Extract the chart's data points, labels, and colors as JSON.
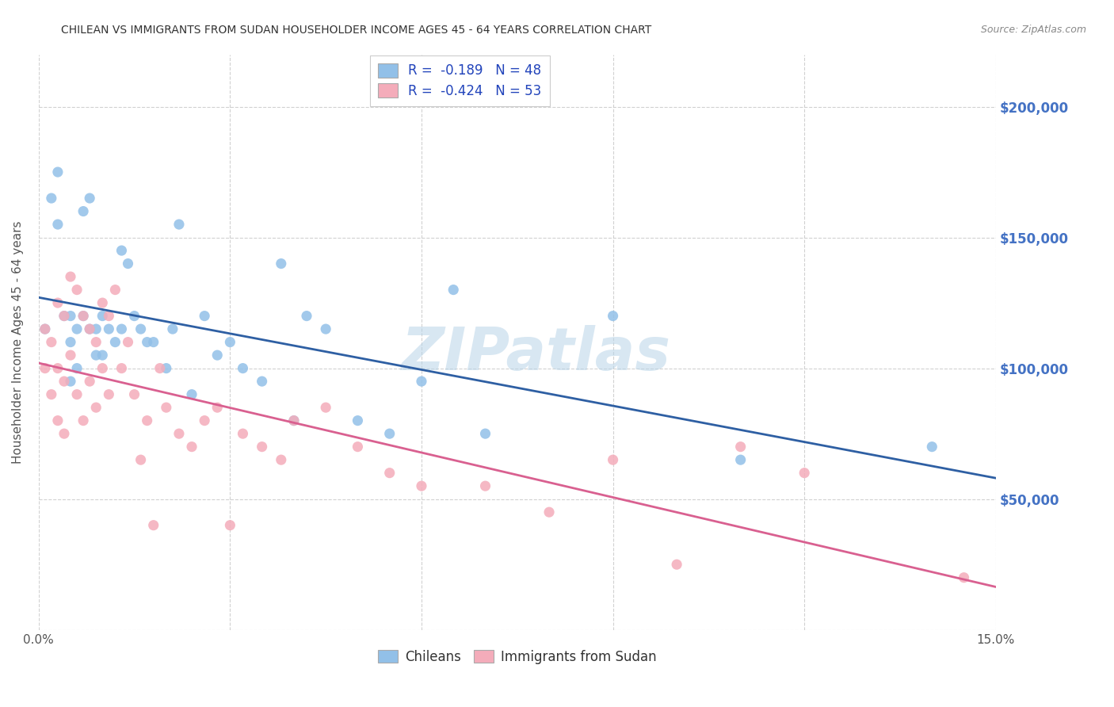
{
  "title": "CHILEAN VS IMMIGRANTS FROM SUDAN HOUSEHOLDER INCOME AGES 45 - 64 YEARS CORRELATION CHART",
  "source": "Source: ZipAtlas.com",
  "ylabel": "Householder Income Ages 45 - 64 years",
  "xmin": 0.0,
  "xmax": 0.15,
  "ymin": 0,
  "ymax": 220000,
  "yticks": [
    0,
    50000,
    100000,
    150000,
    200000
  ],
  "ytick_labels": [
    "",
    "$50,000",
    "$100,000",
    "$150,000",
    "$200,000"
  ],
  "xticks": [
    0.0,
    0.03,
    0.06,
    0.09,
    0.12,
    0.15
  ],
  "xtick_labels": [
    "0.0%",
    "",
    "",
    "",
    "",
    "15.0%"
  ],
  "legend_label1": "Chileans",
  "legend_label2": "Immigrants from Sudan",
  "R1": -0.189,
  "N1": 48,
  "R2": -0.424,
  "N2": 53,
  "color_blue": "#92C0E8",
  "color_pink": "#F4ACBA",
  "line_color_blue": "#2E5FA3",
  "line_color_pink": "#D96090",
  "watermark": "ZIPatlas",
  "blue_points_x": [
    0.001,
    0.002,
    0.003,
    0.003,
    0.004,
    0.005,
    0.005,
    0.005,
    0.006,
    0.006,
    0.007,
    0.007,
    0.008,
    0.008,
    0.009,
    0.009,
    0.01,
    0.01,
    0.011,
    0.012,
    0.013,
    0.013,
    0.014,
    0.015,
    0.016,
    0.017,
    0.018,
    0.02,
    0.021,
    0.022,
    0.024,
    0.026,
    0.028,
    0.03,
    0.032,
    0.035,
    0.038,
    0.04,
    0.042,
    0.045,
    0.05,
    0.055,
    0.06,
    0.065,
    0.07,
    0.09,
    0.11,
    0.14
  ],
  "blue_points_y": [
    115000,
    165000,
    175000,
    155000,
    120000,
    120000,
    110000,
    95000,
    115000,
    100000,
    160000,
    120000,
    165000,
    115000,
    115000,
    105000,
    120000,
    105000,
    115000,
    110000,
    145000,
    115000,
    140000,
    120000,
    115000,
    110000,
    110000,
    100000,
    115000,
    155000,
    90000,
    120000,
    105000,
    110000,
    100000,
    95000,
    140000,
    80000,
    120000,
    115000,
    80000,
    75000,
    95000,
    130000,
    75000,
    120000,
    65000,
    70000
  ],
  "pink_points_x": [
    0.001,
    0.001,
    0.002,
    0.002,
    0.003,
    0.003,
    0.003,
    0.004,
    0.004,
    0.004,
    0.005,
    0.005,
    0.006,
    0.006,
    0.007,
    0.007,
    0.008,
    0.008,
    0.009,
    0.009,
    0.01,
    0.01,
    0.011,
    0.011,
    0.012,
    0.013,
    0.014,
    0.015,
    0.016,
    0.017,
    0.018,
    0.019,
    0.02,
    0.022,
    0.024,
    0.026,
    0.028,
    0.03,
    0.032,
    0.035,
    0.038,
    0.04,
    0.045,
    0.05,
    0.055,
    0.06,
    0.07,
    0.08,
    0.09,
    0.1,
    0.11,
    0.12,
    0.145
  ],
  "pink_points_y": [
    115000,
    100000,
    110000,
    90000,
    125000,
    100000,
    80000,
    120000,
    95000,
    75000,
    135000,
    105000,
    130000,
    90000,
    120000,
    80000,
    115000,
    95000,
    110000,
    85000,
    125000,
    100000,
    120000,
    90000,
    130000,
    100000,
    110000,
    90000,
    65000,
    80000,
    40000,
    100000,
    85000,
    75000,
    70000,
    80000,
    85000,
    40000,
    75000,
    70000,
    65000,
    80000,
    85000,
    70000,
    60000,
    55000,
    55000,
    45000,
    65000,
    25000,
    70000,
    60000,
    20000
  ]
}
